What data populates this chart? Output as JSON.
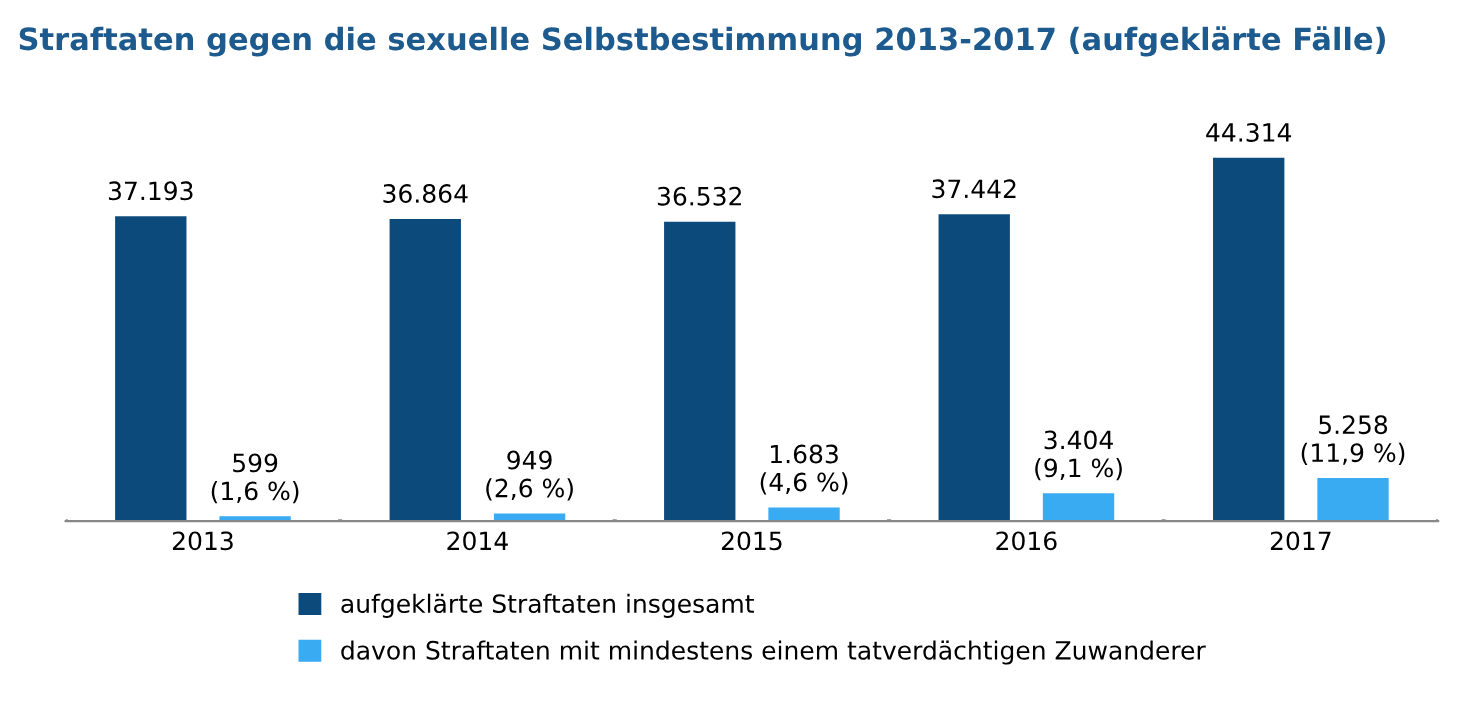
{
  "chart_data": {
    "type": "bar",
    "title": "Straftaten gegen die sexuelle Selbstbestimmung 2013-2017 (aufgeklärte Fälle)",
    "categories": [
      "2013",
      "2014",
      "2015",
      "2016",
      "2017"
    ],
    "series": [
      {
        "name": "aufgeklärte Straftaten insgesamt",
        "color": "#0d4a7c",
        "values": [
          37193,
          36864,
          36532,
          37442,
          44314
        ],
        "value_labels": [
          "37.193",
          "36.864",
          "36.532",
          "37.442",
          "44.314"
        ]
      },
      {
        "name": "davon Straftaten mit mindestens einem tatverdächtigen Zuwanderer",
        "color": "#38abf2",
        "values": [
          599,
          949,
          1683,
          3404,
          5258
        ],
        "value_labels": [
          "599\n(1,6 %)",
          "949\n(2,6 %)",
          "1.683\n(4,6 %)",
          "3.404\n(9,1 %)",
          "5.258\n(11,9 %)"
        ]
      }
    ],
    "legend": "bottom",
    "grid": false,
    "tick_labels": "x"
  }
}
